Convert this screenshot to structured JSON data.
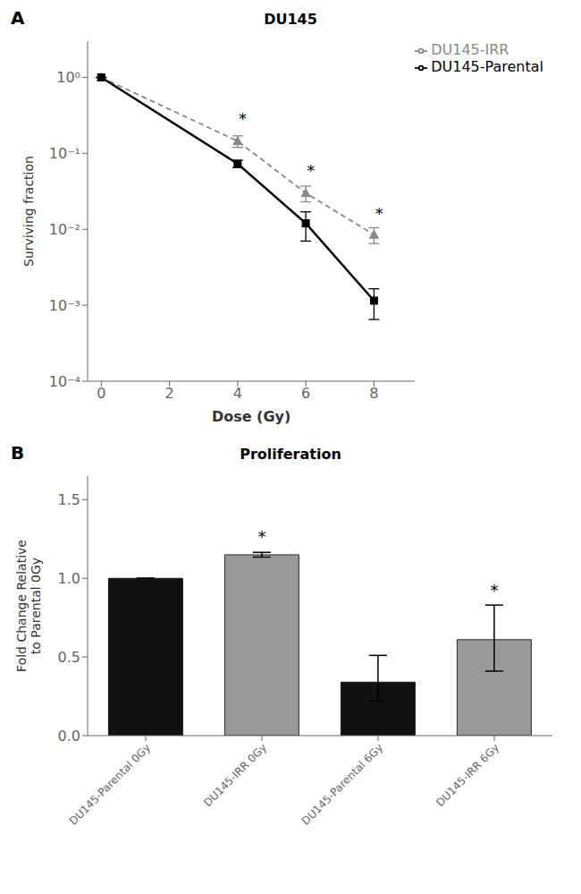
{
  "chart_data": [
    {
      "type": "line",
      "panel_label": "A",
      "title": "DU145",
      "x_label": "Dose (Gy)",
      "y_label": "Surviving fraction",
      "log": "y",
      "x": [
        0,
        4,
        6,
        8
      ],
      "series": [
        {
          "name": "DU145-IRR",
          "color": "#888888",
          "marker": "triangle",
          "line_style": "dashed",
          "values": [
            1.0,
            0.145,
            0.03,
            0.0085
          ],
          "error_lo": [
            0.0,
            0.025,
            0.007,
            0.002
          ],
          "error_hi": [
            0.0,
            0.025,
            0.007,
            0.002
          ]
        },
        {
          "name": "DU145-Parental",
          "color": "#000000",
          "marker": "square",
          "line_style": "solid",
          "values": [
            1.0,
            0.073,
            0.012,
            0.00115
          ],
          "error_lo": [
            0.0,
            0.008,
            0.005,
            0.0005
          ],
          "error_hi": [
            0.0,
            0.008,
            0.005,
            0.0005
          ]
        }
      ],
      "xlim": [
        -0.4,
        9.2
      ],
      "xticks": [
        0,
        2,
        4,
        6,
        8
      ],
      "ylim": [
        0.0001,
        3.0
      ],
      "yticks": [
        {
          "value": 1,
          "label": "10⁰"
        },
        {
          "value": 0.1,
          "label": "10⁻¹"
        },
        {
          "value": 0.01,
          "label": "10⁻²"
        },
        {
          "value": 0.001,
          "label": "10⁻³"
        },
        {
          "value": 0.0001,
          "label": "10⁻⁴"
        }
      ],
      "legend": "upper right",
      "grid": false,
      "annotations": [
        {
          "x": 4.15,
          "y": 0.21,
          "text": "*"
        },
        {
          "x": 6.15,
          "y": 0.044,
          "text": "*"
        },
        {
          "x": 8.15,
          "y": 0.012,
          "text": "*"
        }
      ]
    },
    {
      "type": "bar",
      "panel_label": "B",
      "title": "Proliferation",
      "y_label": "Fold Change Relative\nto Parental 0Gy",
      "categories": [
        "DU145-Parental 0Gy",
        "DU145-IRR 0Gy",
        "DU145-Parental 6Gy",
        "DU145-IRR 6Gy"
      ],
      "values": [
        1.0,
        1.15,
        0.34,
        0.61
      ],
      "error_lo": [
        0.0,
        0.015,
        0.12,
        0.2
      ],
      "error_hi": [
        0.0,
        0.015,
        0.17,
        0.22
      ],
      "colors": [
        "#111111",
        "#999999",
        "#111111",
        "#999999"
      ],
      "ylim": [
        0,
        1.65
      ],
      "yticks": [
        {
          "value": 0.0,
          "label": "0.0"
        },
        {
          "value": 0.5,
          "label": "0.5"
        },
        {
          "value": 1.0,
          "label": "1.0"
        },
        {
          "value": 1.5,
          "label": "1.5"
        }
      ],
      "grid": false,
      "annotations": [
        {
          "category": "DU145-IRR 0Gy",
          "y": 1.2,
          "text": "*"
        },
        {
          "category": "DU145-IRR 6Gy",
          "y": 0.86,
          "text": "*"
        }
      ]
    }
  ]
}
